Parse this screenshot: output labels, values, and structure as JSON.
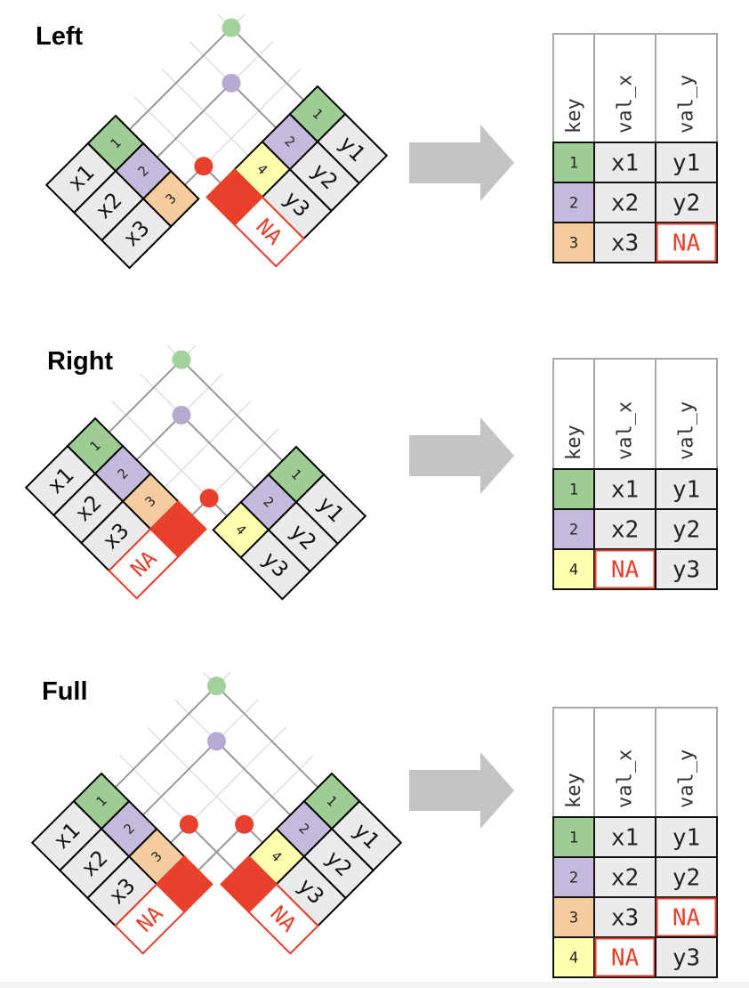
{
  "colors": {
    "key_1": "#9dcd93",
    "key_2": "#c5badc",
    "key_3": "#f5cc9e",
    "key_4": "#ffffad",
    "value_cell": "#ebebeb",
    "missing": "#e8402a",
    "dot_green": "#a0d29a",
    "dot_purple": "#b6aad0",
    "dot_red": "#e8402a",
    "arrow": "#c4c4c4"
  },
  "diagrams": [
    {
      "title": "Left",
      "left_table": [
        {
          "key": "1",
          "value": "x1"
        },
        {
          "key": "2",
          "value": "x2"
        },
        {
          "key": "3",
          "value": "x3"
        }
      ],
      "right_table": [
        {
          "key": "1",
          "value": "y1"
        },
        {
          "key": "2",
          "value": "y2"
        },
        {
          "key": "4",
          "value": "y3"
        },
        {
          "key": "",
          "value": "NA",
          "missing": true
        }
      ],
      "matches": [
        {
          "left_row": 0,
          "right_row": 0,
          "dot": "dot_green"
        },
        {
          "left_row": 1,
          "right_row": 1,
          "dot": "dot_purple"
        },
        {
          "left_row": 2,
          "right_row": 3,
          "dot": "dot_red"
        }
      ],
      "result": {
        "headers": [
          "key",
          "val_x",
          "val_y"
        ],
        "rows": [
          [
            "1",
            "x1",
            "y1"
          ],
          [
            "2",
            "x2",
            "y2"
          ],
          [
            "3",
            "x3",
            "NA"
          ]
        ]
      }
    },
    {
      "title": "Right",
      "left_table": [
        {
          "key": "1",
          "value": "x1"
        },
        {
          "key": "2",
          "value": "x2"
        },
        {
          "key": "3",
          "value": "x3"
        },
        {
          "key": "",
          "value": "NA",
          "missing": true
        }
      ],
      "right_table": [
        {
          "key": "1",
          "value": "y1"
        },
        {
          "key": "2",
          "value": "y2"
        },
        {
          "key": "4",
          "value": "y3"
        }
      ],
      "matches": [
        {
          "left_row": 0,
          "right_row": 0,
          "dot": "dot_green"
        },
        {
          "left_row": 1,
          "right_row": 1,
          "dot": "dot_purple"
        },
        {
          "left_row": 3,
          "right_row": 2,
          "dot": "dot_red"
        }
      ],
      "result": {
        "headers": [
          "key",
          "val_x",
          "val_y"
        ],
        "rows": [
          [
            "1",
            "x1",
            "y1"
          ],
          [
            "2",
            "x2",
            "y2"
          ],
          [
            "4",
            "NA",
            "y3"
          ]
        ]
      }
    },
    {
      "title": "Full",
      "left_table": [
        {
          "key": "1",
          "value": "x1"
        },
        {
          "key": "2",
          "value": "x2"
        },
        {
          "key": "3",
          "value": "x3"
        },
        {
          "key": "",
          "value": "NA",
          "missing": true
        }
      ],
      "right_table": [
        {
          "key": "1",
          "value": "y1"
        },
        {
          "key": "2",
          "value": "y2"
        },
        {
          "key": "4",
          "value": "y3"
        },
        {
          "key": "",
          "value": "NA",
          "missing": true
        }
      ],
      "matches": [
        {
          "left_row": 0,
          "right_row": 0,
          "dot": "dot_green"
        },
        {
          "left_row": 1,
          "right_row": 1,
          "dot": "dot_purple"
        },
        {
          "left_row": 2,
          "right_row": 3,
          "dot": "dot_red"
        },
        {
          "left_row": 3,
          "right_row": 2,
          "dot": "dot_red"
        }
      ],
      "result": {
        "headers": [
          "key",
          "val_x",
          "val_y"
        ],
        "rows": [
          [
            "1",
            "x1",
            "y1"
          ],
          [
            "2",
            "x2",
            "y2"
          ],
          [
            "3",
            "x3",
            "NA"
          ],
          [
            "4",
            "NA",
            "y3"
          ]
        ]
      }
    }
  ]
}
